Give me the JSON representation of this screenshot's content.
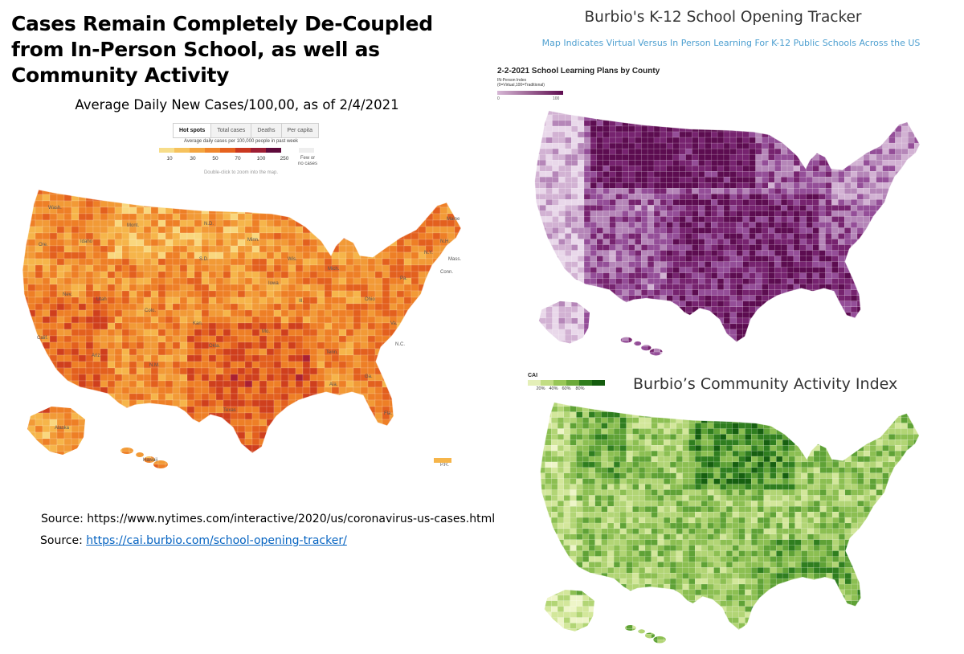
{
  "title": "Cases Remain Completely De-Coupled from In-Person School, as well as Community Activity",
  "left_panel": {
    "subtitle": "Average Daily New Cases/100,00, as of 2/4/2021",
    "tabs": [
      "Hot spots",
      "Total cases",
      "Deaths",
      "Per capita"
    ],
    "legend_title": "Average daily cases per 100,000 people in past week",
    "legend_ticks": [
      "10",
      "30",
      "50",
      "70",
      "100",
      "250"
    ],
    "legend_colors": [
      "#f7dd8a",
      "#f6c25d",
      "#f4a53f",
      "#f0862c",
      "#e6621f",
      "#c9371f",
      "#9e1d33",
      "#5f0a3b"
    ],
    "legend_few": "Few or no cases",
    "hint": "Double-click to zoom into the map.",
    "state_labels": [
      "Wash.",
      "Ore.",
      "Idaho",
      "Mont.",
      "N.D.",
      "Minn.",
      "S.D.",
      "Wis.",
      "Mich.",
      "Iowa",
      "Nev.",
      "Utah",
      "Colo.",
      "Calif.",
      "Ariz.",
      "N.M.",
      "Texas",
      "Okla.",
      "Kan.",
      "Mo.",
      "Ill.",
      "Ohio",
      "Pa.",
      "N.Y.",
      "Maine",
      "N.H.",
      "Mass.",
      "Conn.",
      "Va.",
      "N.C.",
      "Tenn.",
      "Ga.",
      "Ala.",
      "Fla.",
      "Alaska",
      "Hawaii",
      "P.R."
    ],
    "source1": "Source: https://www.nytimes.com/interactive/2020/us/coronavirus-us-cases.html",
    "source2_prefix": "Source: ",
    "source2_link": "https://cai.burbio.com/school-opening-tracker/"
  },
  "right_top": {
    "title": "Burbio's K-12 School Opening Tracker",
    "subtitle": "Map Indicates Virtual Versus In Person Learning For K-12 Public Schools Across the US",
    "map_title": "2-2-2021 School Learning Plans by County",
    "index_label_1": "IN-Person Index",
    "index_label_2": "(0=Virtual,100=Traditional)",
    "index_min": "0",
    "index_max": "100"
  },
  "right_bottom": {
    "title": "Burbio’s Community Activity Index",
    "legend_label": "CAI",
    "legend_ticks": [
      "20%",
      "40%",
      "60%",
      "80%"
    ],
    "legend_colors": [
      "#e4efb8",
      "#c2dd84",
      "#98c657",
      "#6ba93a",
      "#2f7d1d",
      "#145c0e"
    ]
  },
  "map_colors": {
    "nyt": [
      "#f9d77e",
      "#f6b54a",
      "#f29a36",
      "#ee7f26",
      "#e3601e",
      "#cf3f1d",
      "#a92032"
    ],
    "purple": [
      "#e9d8ea",
      "#d2b2d3",
      "#b586b8",
      "#944e98",
      "#76236f",
      "#5c0c50"
    ],
    "green": [
      "#eef5c8",
      "#d3e79b",
      "#b2d575",
      "#8cbf52",
      "#5fa236",
      "#2f7e1f",
      "#165f10"
    ]
  }
}
